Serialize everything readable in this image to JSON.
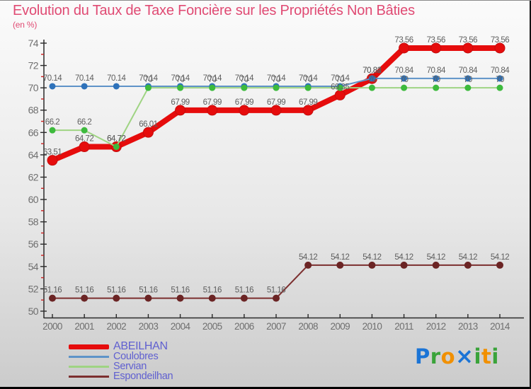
{
  "chart_data": {
    "type": "line",
    "title": "Evolution du Taux de Taxe Foncière sur les Propriétés Non Bâties",
    "subtitle": "(en %)",
    "xlabel": "",
    "ylabel": "en %",
    "x": [
      2000,
      2001,
      2002,
      2003,
      2004,
      2005,
      2006,
      2007,
      2008,
      2009,
      2010,
      2011,
      2012,
      2013,
      2014
    ],
    "ylim": [
      50,
      74
    ],
    "ytick_step": 2,
    "grid": false,
    "legend_position": "bottom-left",
    "series": [
      {
        "name": "ABEILHAN",
        "color": "#e60c0c",
        "marker_color": "#e60c0c",
        "marker_stroke": "#c40e0e",
        "line_width": 8,
        "marker_radius": 7,
        "values": [
          63.51,
          64.72,
          64.72,
          66.01,
          67.99,
          67.99,
          67.99,
          67.99,
          67.99,
          69.35,
          70.82,
          73.56,
          73.56,
          73.56,
          73.56
        ],
        "labels": [
          "63.51",
          "64.72",
          "64.72",
          "66.01",
          "67.99",
          "67.99",
          "67.99",
          "67.99",
          "67.99",
          "69.35",
          "70.82",
          "73.56",
          "73.56",
          "73.56",
          "73.56"
        ]
      },
      {
        "name": "Coulobres",
        "color": "#5e93c8",
        "marker_color": "#2e72ba",
        "marker_stroke": "",
        "line_width": 2,
        "marker_radius": 4.5,
        "values": [
          70.14,
          70.14,
          70.14,
          70.14,
          70.14,
          70.14,
          70.14,
          70.14,
          70.14,
          70.14,
          70.84,
          70.84,
          70.84,
          70.84,
          70.84
        ],
        "labels": [
          "70.14",
          "70.14",
          "70.14",
          "70.14",
          "70.14",
          "70.14",
          "70.14",
          "70.14",
          "70.14",
          "70.14",
          "70.84",
          "70.84",
          "70.84",
          "70.84",
          "70.84"
        ]
      },
      {
        "name": "Servian",
        "color": "#9fd483",
        "marker_color": "#3dba3d",
        "marker_stroke": "",
        "line_width": 2,
        "marker_radius": 4.5,
        "values": [
          66.2,
          66.2,
          64.72,
          70,
          70,
          70,
          70,
          70,
          70,
          70,
          70,
          70,
          70,
          70,
          70
        ],
        "labels": [
          "66.2",
          "66.2",
          "64.72",
          "70",
          "70",
          "70",
          "70",
          "70",
          "70",
          "70",
          "70",
          "70",
          "70",
          "70",
          "70"
        ]
      },
      {
        "name": "Espondeilhan",
        "color": "#7c2f2f",
        "marker_color": "#6b2424",
        "marker_stroke": "",
        "line_width": 2,
        "marker_radius": 5,
        "values": [
          51.16,
          51.16,
          51.16,
          51.16,
          51.16,
          51.16,
          51.16,
          51.16,
          54.12,
          54.12,
          54.12,
          54.12,
          54.12,
          54.12,
          54.12
        ],
        "labels": [
          "51.16",
          "51.16",
          "51.16",
          "51.16",
          "51.16",
          "51.16",
          "51.16",
          "51.16",
          "54.12",
          "54.12",
          "54.12",
          "54.12",
          "54.12",
          "54.12",
          "54.12"
        ]
      }
    ]
  },
  "logo": {
    "letters": [
      {
        "char": "P",
        "color": "#1b74d6"
      },
      {
        "char": "r",
        "color": "#3aa33a"
      },
      {
        "char": "o",
        "color": "#f19000"
      },
      {
        "char": "×",
        "color": "#1b74d6"
      },
      {
        "char": "i",
        "color": "#3aa33a"
      },
      {
        "char": "t",
        "color": "#f19000"
      },
      {
        "char": "i",
        "color": "#3aa33a"
      }
    ]
  },
  "colors": {
    "title": "#e04a73",
    "axis": "#2a2a2a",
    "minor_tick": "#cc2222",
    "tick_label": "#6f6f6f",
    "value_label": "#5e5e5e",
    "legend_text": "#6060d0",
    "bg_top": "#fbfbfb",
    "bg_mid": "#e8e8e8",
    "bg_bottom": "#cbcbcb"
  }
}
